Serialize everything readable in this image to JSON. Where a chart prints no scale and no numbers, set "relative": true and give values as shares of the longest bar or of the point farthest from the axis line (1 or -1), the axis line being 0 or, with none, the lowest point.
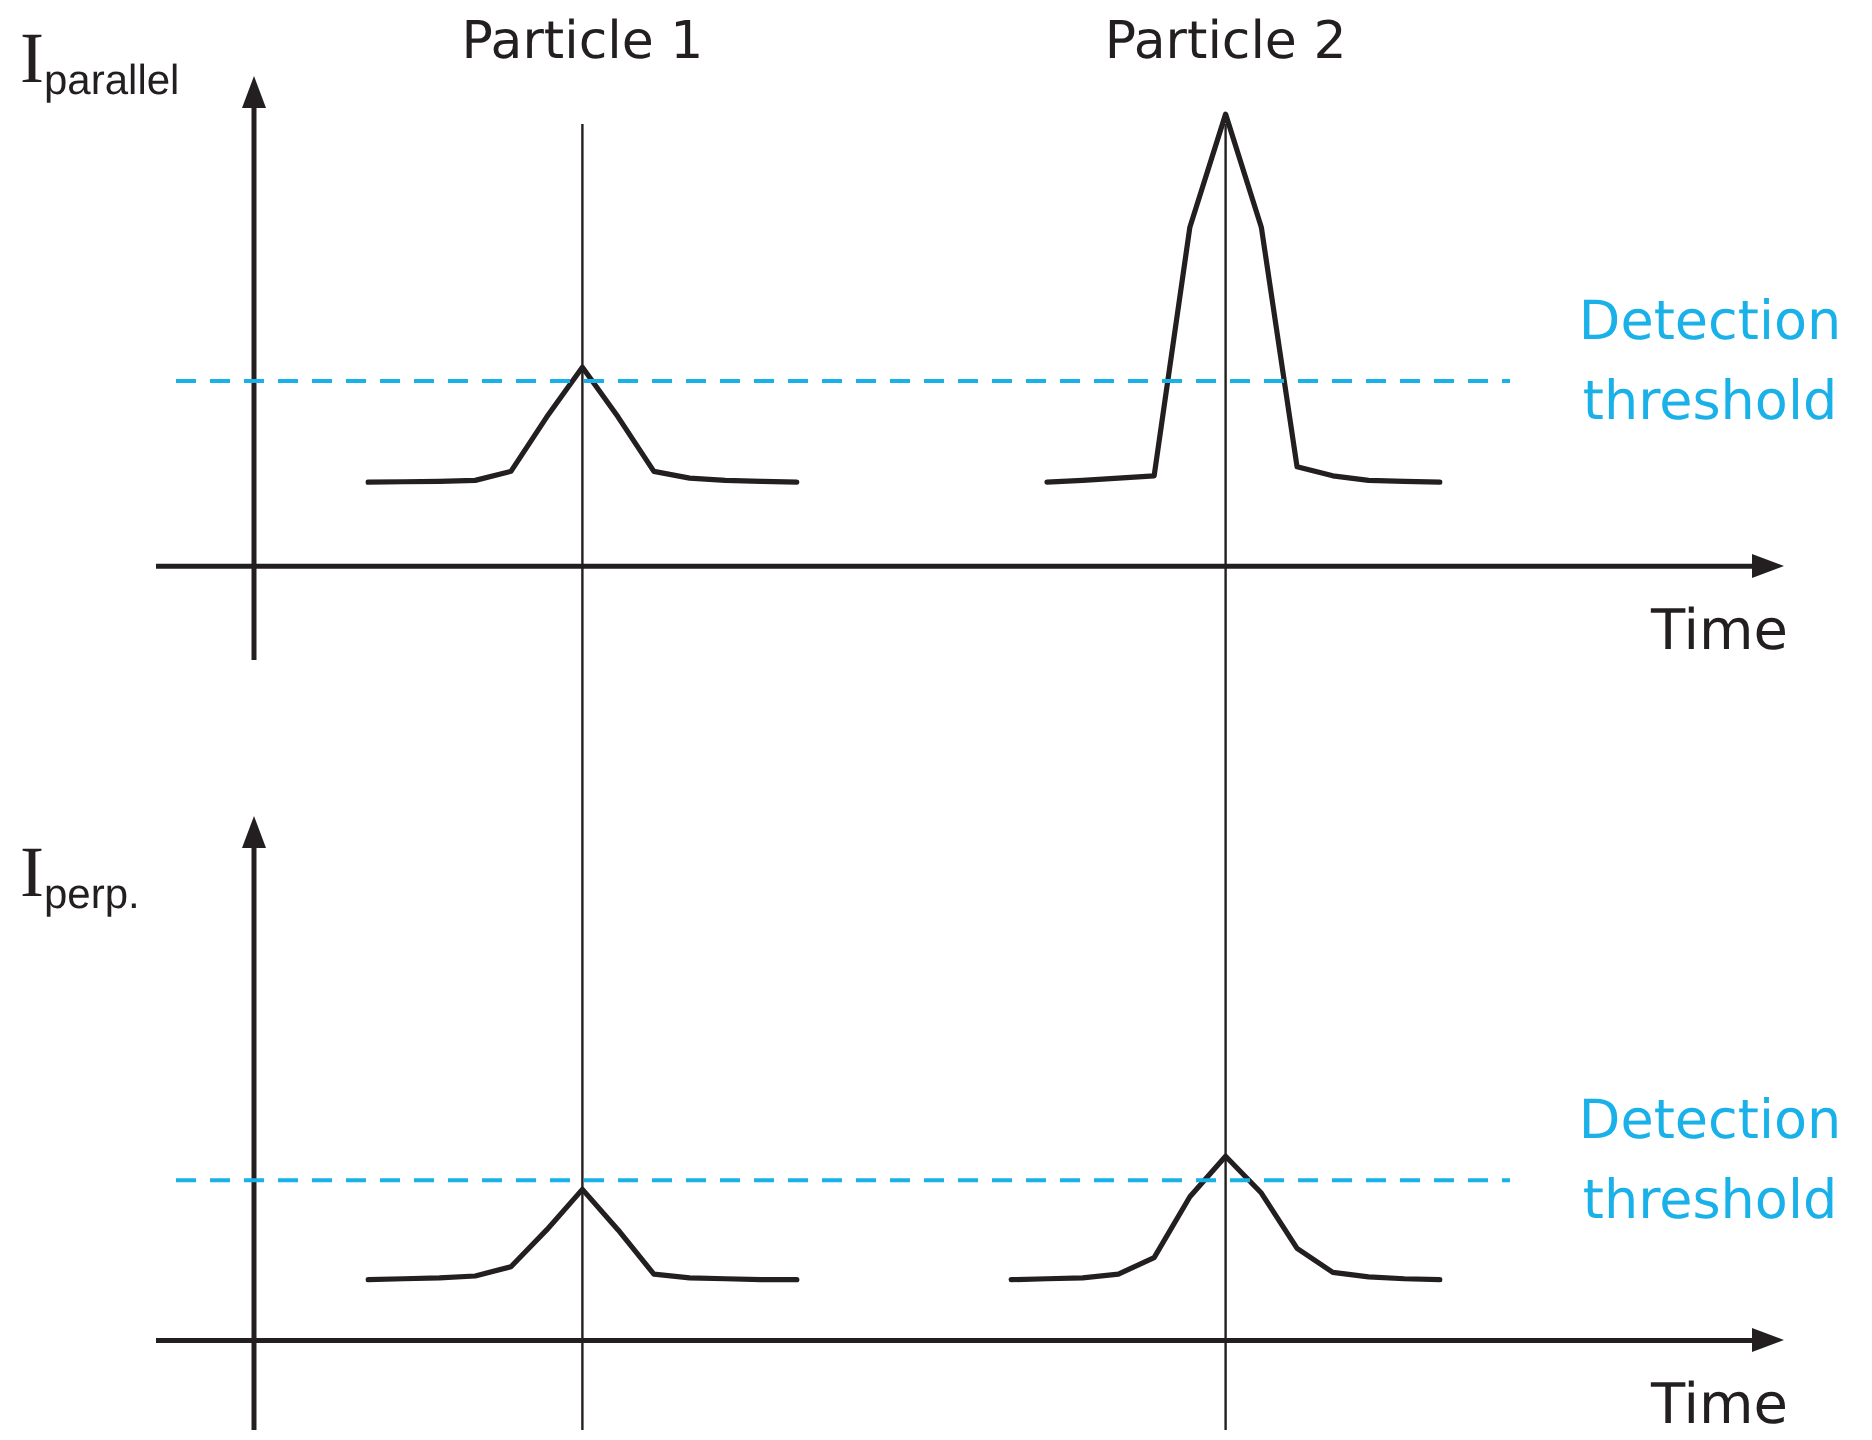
{
  "chart_data": [
    {
      "type": "line",
      "ylabel": "I$_{parallel}$",
      "xlabel": "Time",
      "relative": true,
      "tick_labels": false,
      "categories": [
        null,
        null,
        null,
        null,
        null,
        null,
        null,
        null,
        null,
        null,
        null,
        null,
        null,
        null,
        null,
        null,
        null,
        null,
        null,
        null,
        null,
        null,
        null,
        null,
        null,
        null,
        null,
        null,
        null,
        null,
        null
      ],
      "series": [
        {
          "color": "#231f20",
          "values": [
            0.186,
            0.187,
            0.188,
            0.19,
            0.21,
            0.33,
            0.44,
            0.33,
            0.21,
            0.195,
            0.19,
            0.188,
            0.186,
            null,
            null,
            null,
            null,
            null,
            null,
            null,
            null,
            null,
            null,
            null,
            null,
            null,
            null,
            null,
            null,
            null,
            null
          ]
        },
        {
          "color": "#231f20",
          "values": [
            null,
            null,
            null,
            null,
            null,
            null,
            null,
            null,
            null,
            null,
            null,
            null,
            null,
            null,
            null,
            null,
            null,
            null,
            null,
            0.186,
            0.19,
            0.195,
            0.2,
            0.75,
            1,
            0.75,
            0.22,
            0.2,
            0.19,
            0.188,
            0.186
          ]
        }
      ],
      "ref_lines": [
        {
          "axis": "y",
          "value": 0.41,
          "label": "Detection threshold",
          "color": "#1ab0e8",
          "line_style": "dashed"
        },
        {
          "axis": "x",
          "label": "Particle 1",
          "color": "#231f20",
          "line_style": "solid"
        },
        {
          "axis": "x",
          "label": "Particle 2",
          "color": "#231f20",
          "line_style": "solid"
        }
      ]
    },
    {
      "type": "line",
      "ylabel": "I$_{perp.}$",
      "xlabel": "Time",
      "relative": true,
      "tick_labels": false,
      "categories": [
        null,
        null,
        null,
        null,
        null,
        null,
        null,
        null,
        null,
        null,
        null,
        null,
        null,
        null,
        null,
        null,
        null,
        null,
        null,
        null,
        null,
        null,
        null,
        null,
        null,
        null,
        null,
        null,
        null,
        null,
        null
      ],
      "series": [
        {
          "color": "#231f20",
          "values": [
            0.33,
            0.335,
            0.34,
            0.35,
            0.4,
            0.6,
            0.82,
            0.6,
            0.36,
            0.34,
            0.335,
            0.33,
            0.33,
            null,
            null,
            null,
            null,
            null,
            null,
            null,
            null,
            null,
            null,
            null,
            null,
            null,
            null,
            null,
            null,
            null,
            null
          ]
        },
        {
          "color": "#231f20",
          "values": [
            null,
            null,
            null,
            null,
            null,
            null,
            null,
            null,
            null,
            null,
            null,
            null,
            null,
            null,
            null,
            null,
            null,
            null,
            0.33,
            0.335,
            0.34,
            0.36,
            0.45,
            0.78,
            1,
            0.8,
            0.5,
            0.37,
            0.345,
            0.335,
            0.33
          ]
        }
      ],
      "ref_lines": [
        {
          "axis": "y",
          "value": 0.87,
          "label": "Detection threshold",
          "color": "#1ab0e8",
          "line_style": "dashed"
        },
        {
          "axis": "x",
          "color": "#231f20",
          "line_style": "solid"
        },
        {
          "axis": "x",
          "color": "#231f20",
          "line_style": "solid"
        }
      ]
    }
  ]
}
